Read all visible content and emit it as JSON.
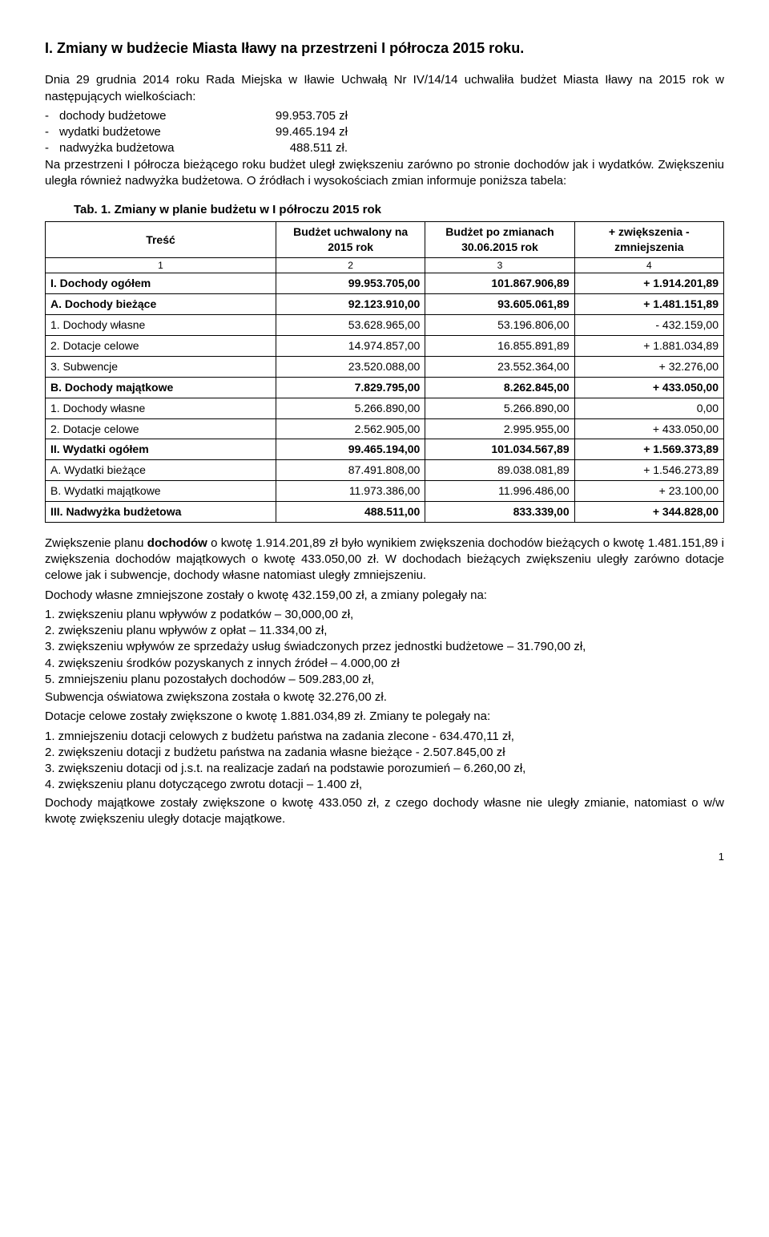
{
  "heading": "I.   Zmiany w budżecie Miasta Iławy na przestrzeni I półrocza 2015 roku.",
  "intro_p1": "Dnia 29 grudnia 2014 roku Rada Miejska w Iławie Uchwałą Nr IV/14/14 uchwaliła budżet Miasta Iławy na 2015 rok w następujących wielkościach:",
  "intro_lines": [
    {
      "label": "dochody budżetowe",
      "value": "99.953.705 zł"
    },
    {
      "label": "wydatki budżetowe",
      "value": "99.465.194 zł"
    },
    {
      "label": "nadwyżka budżetowa",
      "value": "488.511 zł."
    }
  ],
  "intro_p2": "Na przestrzeni I półrocza bieżącego roku budżet uległ zwiększeniu zarówno po stronie dochodów jak i wydatków. Zwiększeniu uległa również nadwyżka budżetowa. O źródłach i wysokościach zmian informuje poniższa tabela:",
  "table_caption": "Tab. 1. Zmiany w planie budżetu w I półroczu 2015 rok",
  "table": {
    "headers": [
      "Treść",
      "Budżet uchwalony na 2015 rok",
      "Budżet po zmianach 30.06.2015 rok",
      "+ zwiększenia - zmniejszenia"
    ],
    "index_row": [
      "1",
      "2",
      "3",
      "4"
    ],
    "rows": [
      {
        "bold": true,
        "label": "I. Dochody ogółem",
        "c1": "99.953.705,00",
        "c2": "101.867.906,89",
        "delta": "+ 1.914.201,89"
      },
      {
        "bold": true,
        "label": "A. Dochody bieżące",
        "c1": "92.123.910,00",
        "c2": "93.605.061,89",
        "delta": "+ 1.481.151,89"
      },
      {
        "bold": false,
        "label": "1. Dochody własne",
        "c1": "53.628.965,00",
        "c2": "53.196.806,00",
        "delta": "- 432.159,00"
      },
      {
        "bold": false,
        "label": "2. Dotacje celowe",
        "c1": "14.974.857,00",
        "c2": "16.855.891,89",
        "delta": "+ 1.881.034,89"
      },
      {
        "bold": false,
        "label": "3. Subwencje",
        "c1": "23.520.088,00",
        "c2": "23.552.364,00",
        "delta": "+ 32.276,00"
      },
      {
        "bold": true,
        "label": "B. Dochody majątkowe",
        "c1": "7.829.795,00",
        "c2": "8.262.845,00",
        "delta": "+ 433.050,00"
      },
      {
        "bold": false,
        "label": "1. Dochody własne",
        "c1": "5.266.890,00",
        "c2": "5.266.890,00",
        "delta": "0,00"
      },
      {
        "bold": false,
        "label": "2. Dotacje celowe",
        "c1": "2.562.905,00",
        "c2": "2.995.955,00",
        "delta": "+ 433.050,00"
      },
      {
        "bold": true,
        "label": "II. Wydatki ogółem",
        "c1": "99.465.194,00",
        "c2": "101.034.567,89",
        "delta": "+ 1.569.373,89"
      },
      {
        "bold": false,
        "label": "A. Wydatki bieżące",
        "c1": "87.491.808,00",
        "c2": "89.038.081,89",
        "delta": "+ 1.546.273,89"
      },
      {
        "bold": false,
        "label": "B. Wydatki majątkowe",
        "c1": "11.973.386,00",
        "c2": "11.996.486,00",
        "delta": "+ 23.100,00"
      },
      {
        "bold": true,
        "label": "III. Nadwyżka budżetowa",
        "c1": "488.511,00",
        "c2": "833.339,00",
        "delta": "+ 344.828,00"
      }
    ]
  },
  "para_increase_intro_a": "Zwiększenie planu ",
  "para_increase_bold": "dochodów",
  "para_increase_intro_b": " o kwotę 1.914.201,89 zł było wynikiem zwiększenia dochodów bieżących o kwotę 1.481.151,89 i zwiększenia dochodów majątkowych o kwotę 433.050,00 zł. W dochodach bieżących zwiększeniu uległy zarówno dotacje celowe jak i subwencje, dochody własne natomiast uległy zmniejszeniu.",
  "para_own_income": "Dochody własne zmniejszone zostały o kwotę 432.159,00 zł, a zmiany polegały na:",
  "own_income_list": [
    "1.  zwiększeniu planu wpływów z podatków – 30,000,00 zł,",
    "2.  zwiększeniu planu wpływów z opłat – 11.334,00 zł,",
    "3.  zwiększeniu wpływów ze sprzedaży usług świadczonych przez jednostki budżetowe – 31.790,00 zł,",
    "4.  zwiększeniu środków pozyskanych z innych źródeł – 4.000,00 zł",
    "5.  zmniejszeniu planu pozostałych dochodów – 509.283,00 zł,"
  ],
  "para_subvention": "Subwencja oświatowa zwiększona została o kwotę 32.276,00 zł.",
  "para_targeted": "Dotacje celowe zostały zwiększone o kwotę 1.881.034,89 zł. Zmiany te polegały na:",
  "targeted_list": [
    "1.  zmniejszeniu dotacji celowych z budżetu państwa na zadania zlecone  - 634.470,11 zł,",
    "2.  zwiększeniu dotacji z budżetu państwa na zadania własne bieżące  - 2.507.845,00 zł",
    "3.  zwiększeniu dotacji od j.s.t. na realizacje zadań na podstawie porozumień – 6.260,00 zł,",
    "4.  zwiększeniu planu dotyczącego zwrotu dotacji – 1.400 zł,"
  ],
  "para_capital": "Dochody majątkowe zostały zwiększone o kwotę 433.050 zł, z czego dochody własne nie uległy zmianie, natomiast o w/w kwotę zwiększeniu uległy dotacje majątkowe.",
  "page_number": "1"
}
